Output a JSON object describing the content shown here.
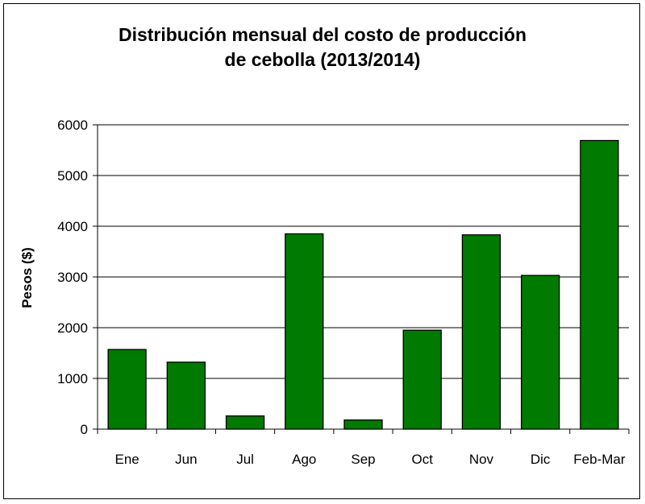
{
  "chart_data": {
    "type": "bar",
    "title_lines": [
      "Distribución mensual del costo de producción",
      "de cebolla (2013/2014)"
    ],
    "xlabel": "",
    "ylabel": "Pesos ($)",
    "categories": [
      "Ene",
      "Jun",
      "Jul",
      "Ago",
      "Sep",
      "Oct",
      "Nov",
      "Dic",
      "Feb-Mar"
    ],
    "values": [
      1570,
      1320,
      260,
      3850,
      180,
      1950,
      3830,
      3030,
      5690
    ],
    "ylim": [
      0,
      6000
    ],
    "yticks": [
      0,
      1000,
      2000,
      3000,
      4000,
      5000,
      6000
    ],
    "grid": true,
    "legend": "none",
    "bar_color": "#007a00"
  }
}
